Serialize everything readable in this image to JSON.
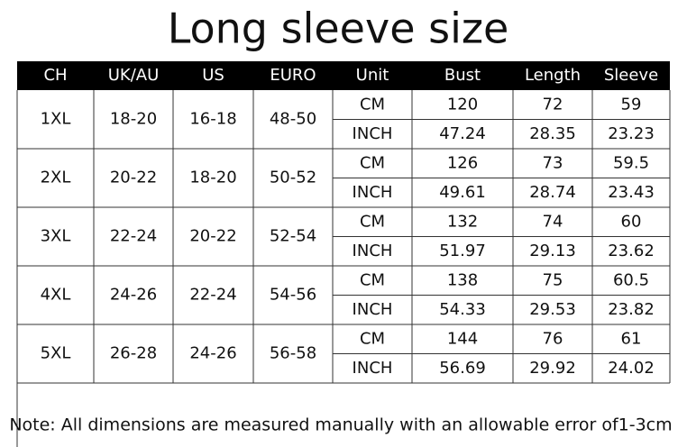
{
  "title": "Long sleeve size",
  "table": {
    "header": [
      "CH",
      "UK/AU",
      "US",
      "EURO",
      "Unit",
      "Bust",
      "Length",
      "Sleeve"
    ],
    "groups": [
      {
        "cells": [
          "1XL",
          "18-20",
          "16-18",
          "48-50"
        ],
        "rows": [
          [
            "CM",
            120,
            72,
            59
          ],
          [
            "INCH",
            47.24,
            28.35,
            23.23
          ]
        ]
      },
      {
        "cells": [
          "2XL",
          "20-22",
          "18-20",
          "50-52"
        ],
        "rows": [
          [
            "CM",
            126,
            73,
            59.5
          ],
          [
            "INCH",
            49.61,
            28.74,
            23.43
          ]
        ]
      },
      {
        "cells": [
          "3XL",
          "22-24",
          "20-22",
          "52-54"
        ],
        "rows": [
          [
            "CM",
            132,
            74,
            60
          ],
          [
            "INCH",
            51.97,
            29.13,
            23.62
          ]
        ]
      },
      {
        "cells": [
          "4XL",
          "24-26",
          "22-24",
          "54-56"
        ],
        "rows": [
          [
            "CM",
            138,
            75,
            60.5
          ],
          [
            "INCH",
            54.33,
            29.53,
            23.82
          ]
        ]
      },
      {
        "cells": [
          "5XL",
          "26-28",
          "24-26",
          "56-58"
        ],
        "rows": [
          [
            "CM",
            144,
            76,
            61
          ],
          [
            "INCH",
            56.69,
            29.92,
            24.02
          ]
        ]
      }
    ]
  },
  "note": "Note: All dimensions are measured manually with an allowable error of1-3cm"
}
